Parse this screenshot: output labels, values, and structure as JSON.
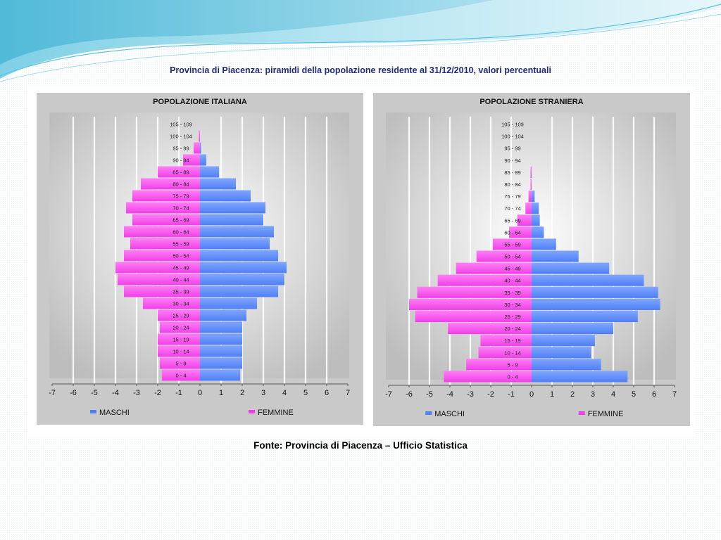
{
  "slide": {
    "title": "Provincia di Piacenza: piramidi della popolazione residente al 31/12/2010, valori percentuali",
    "source": "Fonte: Provincia di Piacenza – Ufficio Statistica"
  },
  "colors": {
    "maschi": "#4f7ff5",
    "femmine": "#f03fe8",
    "plot_bg_center": "#ffffff",
    "plot_bg_edge": "#bdbdbd",
    "frame_bg": "#c9c9c9",
    "accent": "#1f2a7a"
  },
  "chart_data": [
    {
      "type": "bar",
      "orientation": "horizontal-pyramid",
      "title": "POPOLAZIONE ITALIANA",
      "categories": [
        "0 - 4",
        "5 - 9",
        "10 - 14",
        "15 - 19",
        "20 - 24",
        "25 - 29",
        "30 - 34",
        "35 - 39",
        "40 - 44",
        "45 - 49",
        "50 - 54",
        "55 - 59",
        "60 - 64",
        "65 - 69",
        "70 - 74",
        "75 - 79",
        "80 - 84",
        "85 - 89",
        "90 - 94",
        "95 - 99",
        "100 - 104",
        "105 - 109"
      ],
      "series": [
        {
          "name": "MASCHI",
          "values": [
            1.9,
            2.0,
            2.0,
            2.0,
            2.0,
            2.2,
            2.7,
            3.7,
            4.0,
            4.1,
            3.7,
            3.3,
            3.5,
            3.0,
            3.1,
            2.4,
            1.7,
            0.9,
            0.3,
            0.05,
            0.0,
            0.0
          ]
        },
        {
          "name": "FEMMINE",
          "values": [
            -1.8,
            -1.9,
            -2.0,
            -2.0,
            -1.9,
            -2.0,
            -2.7,
            -3.6,
            -3.9,
            -4.0,
            -3.6,
            -3.3,
            -3.6,
            -3.2,
            -3.5,
            -3.2,
            -2.8,
            -2.0,
            -0.8,
            -0.3,
            -0.05,
            0.0
          ]
        }
      ],
      "x_ticks": [
        "-7",
        "-6",
        "-5",
        "-4",
        "-3",
        "-2",
        "-1",
        "0",
        "1",
        "2",
        "3",
        "4",
        "5",
        "6",
        "7"
      ],
      "xlim": [
        -7,
        7
      ],
      "grid": true,
      "legend": "bottom"
    },
    {
      "type": "bar",
      "orientation": "horizontal-pyramid",
      "title": "POPOLAZIONE STRANIERA",
      "categories": [
        "0 - 4",
        "5 - 9",
        "10 - 14",
        "15 - 19",
        "20 - 24",
        "25 - 29",
        "30 - 34",
        "35 - 39",
        "40 - 44",
        "45 - 49",
        "50 - 54",
        "55 - 59",
        "60 - 64",
        "65 - 69",
        "70 - 74",
        "75 - 79",
        "80 - 84",
        "85 - 89",
        "90 - 94",
        "95 - 99",
        "100 - 104",
        "105 - 109"
      ],
      "series": [
        {
          "name": "MASCHI",
          "values": [
            4.7,
            3.4,
            2.9,
            3.1,
            4.0,
            5.2,
            6.3,
            6.2,
            5.5,
            3.8,
            2.3,
            1.2,
            0.6,
            0.4,
            0.35,
            0.15,
            0.0,
            0.0,
            0.0,
            0.0,
            0.0,
            0.0
          ]
        },
        {
          "name": "FEMMINE",
          "values": [
            -4.3,
            -3.2,
            -2.6,
            -2.5,
            -4.1,
            -5.7,
            -6.0,
            -5.6,
            -4.6,
            -3.7,
            -2.7,
            -1.9,
            -1.1,
            -0.7,
            -0.3,
            -0.15,
            -0.05,
            -0.05,
            0.0,
            0.0,
            0.0,
            0.0
          ]
        }
      ],
      "x_ticks": [
        "-7",
        "-6",
        "-5",
        "-4",
        "-3",
        "-2",
        "-1",
        "0",
        "1",
        "2",
        "3",
        "4",
        "5",
        "6",
        "7"
      ],
      "xlim": [
        -7,
        7
      ],
      "grid": true,
      "legend": "bottom"
    }
  ]
}
